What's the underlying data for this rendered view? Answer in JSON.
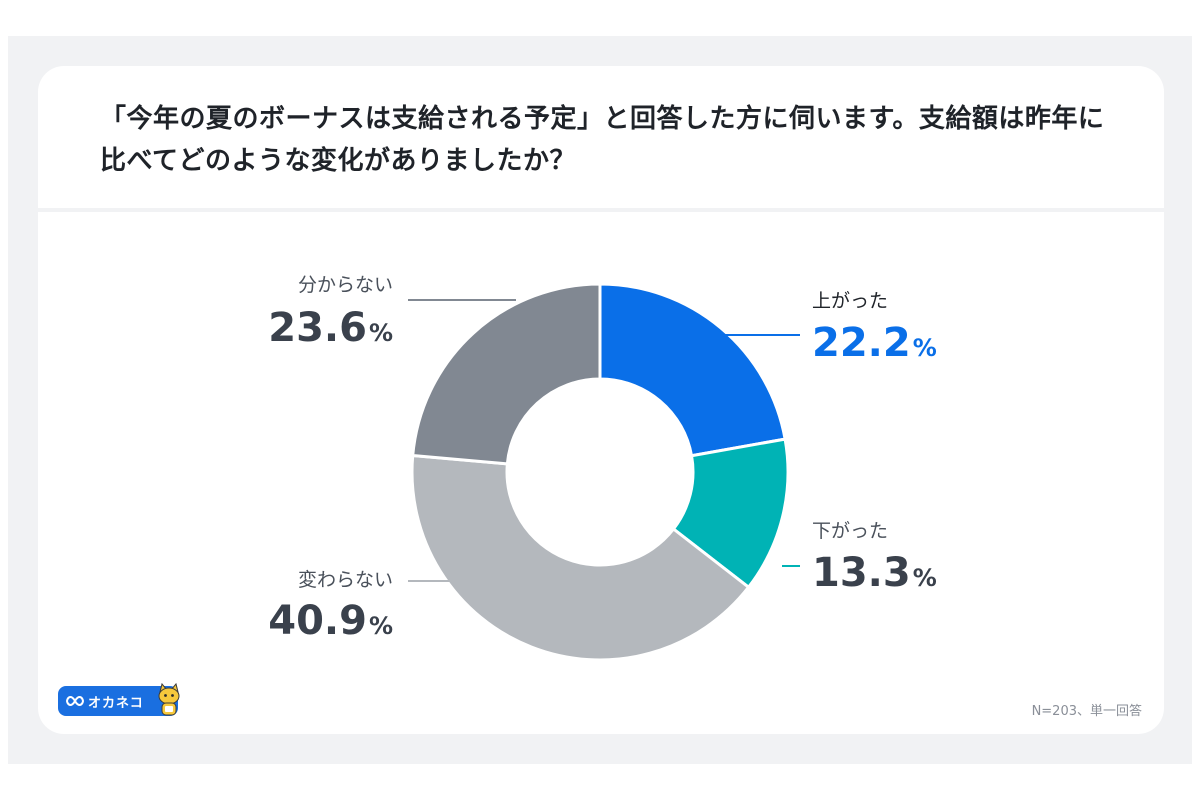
{
  "title": "「今年の夏のボーナスは支給される予定」と回答した方に伺います。支給額は昨年に比べてどのような変化がありましたか？",
  "chart_data": {
    "type": "pie",
    "variant": "donut",
    "title": "「今年の夏のボーナスは支給される予定」と回答した方に伺います。支給額は昨年に比べてどのような変化がありましたか？",
    "series": [
      {
        "name": "上がった",
        "value": 22.2,
        "label": "22.2",
        "unit": "%",
        "color": "#0a6fe8",
        "valueColor": "#0a6fe8"
      },
      {
        "name": "下がった",
        "value": 13.3,
        "label": "13.3",
        "unit": "%",
        "color": "#00b3b5",
        "valueColor": "#3a414c"
      },
      {
        "name": "変わらない",
        "value": 40.9,
        "label": "40.9",
        "unit": "%",
        "color": "#b4b8bd",
        "valueColor": "#3a414c"
      },
      {
        "name": "分からない",
        "value": 23.6,
        "label": "23.6",
        "unit": "%",
        "color": "#818892",
        "valueColor": "#3a414c"
      }
    ]
  },
  "brand": {
    "name": "オカネコ",
    "color": "#1a6fe0"
  },
  "note": "N=203、単一回答"
}
